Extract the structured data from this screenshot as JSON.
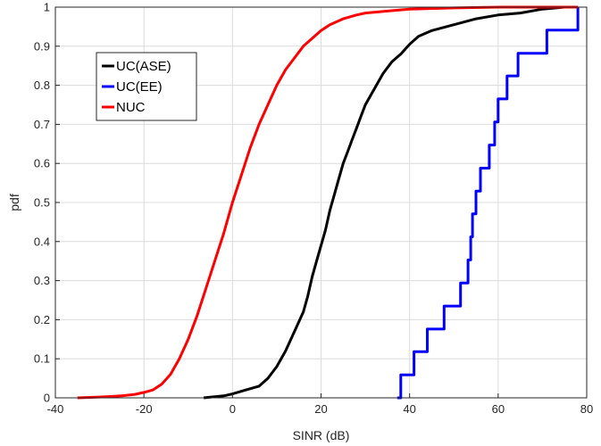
{
  "chart_data": {
    "type": "line",
    "title": "",
    "xlabel": "SINR (dB)",
    "ylabel": "pdf",
    "xlim": [
      -40,
      80
    ],
    "ylim": [
      0,
      1
    ],
    "xticks": [
      -40,
      -20,
      0,
      20,
      40,
      60,
      80
    ],
    "yticks": [
      0,
      0.1,
      0.2,
      0.3,
      0.4,
      0.5,
      0.6,
      0.7,
      0.8,
      0.9,
      1
    ],
    "grid": true,
    "legend_position": "upper-left",
    "series": [
      {
        "name": "UC(ASE)",
        "color": "#000000",
        "step": false,
        "x": [
          -6.5,
          -2,
          0,
          3,
          6,
          8,
          10,
          12,
          14,
          16,
          17,
          18,
          19,
          20,
          21,
          22,
          23,
          24,
          25,
          26,
          27,
          28,
          29,
          30,
          32,
          34,
          36,
          38,
          40,
          42,
          45,
          50,
          55,
          60,
          65,
          70,
          75,
          78
        ],
        "y": [
          0.0,
          0.005,
          0.01,
          0.02,
          0.03,
          0.05,
          0.08,
          0.12,
          0.17,
          0.22,
          0.26,
          0.31,
          0.35,
          0.39,
          0.43,
          0.48,
          0.52,
          0.56,
          0.6,
          0.63,
          0.66,
          0.69,
          0.72,
          0.75,
          0.79,
          0.83,
          0.86,
          0.88,
          0.905,
          0.925,
          0.94,
          0.955,
          0.97,
          0.98,
          0.985,
          0.995,
          1.0,
          1.0
        ]
      },
      {
        "name": "UC(EE)",
        "color": "#0000ff",
        "step": true,
        "x": [
          37.2,
          38.0,
          41.0,
          44.0,
          47.8,
          51.5,
          53.2,
          53.8,
          54.2,
          55.0,
          56.0,
          58.0,
          59.2,
          60.0,
          62.0,
          64.5,
          71.0,
          78.0
        ],
        "y": [
          0.0,
          0.059,
          0.118,
          0.176,
          0.235,
          0.294,
          0.353,
          0.412,
          0.471,
          0.529,
          0.588,
          0.647,
          0.706,
          0.765,
          0.824,
          0.882,
          0.941,
          1.0
        ]
      },
      {
        "name": "NUC",
        "color": "#ff0000",
        "step": false,
        "x": [
          -35,
          -30,
          -25,
          -22,
          -20,
          -18,
          -16,
          -14,
          -12,
          -10,
          -8,
          -6,
          -4,
          -2,
          0,
          2,
          4,
          6,
          8,
          10,
          12,
          14,
          16,
          18,
          20,
          22,
          25,
          28,
          30,
          35,
          40,
          50,
          60,
          70,
          78
        ],
        "y": [
          0.0,
          0.002,
          0.005,
          0.009,
          0.014,
          0.02,
          0.035,
          0.06,
          0.1,
          0.15,
          0.21,
          0.28,
          0.35,
          0.42,
          0.5,
          0.57,
          0.64,
          0.7,
          0.75,
          0.8,
          0.84,
          0.87,
          0.9,
          0.92,
          0.94,
          0.955,
          0.97,
          0.98,
          0.985,
          0.99,
          0.995,
          0.998,
          1.0,
          1.0,
          1.0
        ]
      }
    ]
  }
}
